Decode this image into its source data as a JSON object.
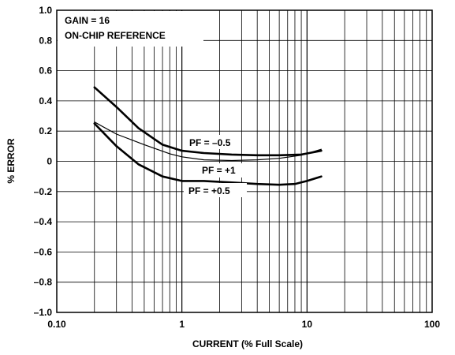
{
  "chart_data": {
    "type": "line",
    "xlabel": "CURRENT (% Full Scale)",
    "ylabel": "% ERROR",
    "x_scale": "log",
    "xlim": [
      0.1,
      100
    ],
    "ylim": [
      -1.0,
      1.0
    ],
    "grid": true,
    "x_ticks": [
      0.1,
      1,
      10,
      100
    ],
    "x_tick_labels": [
      "0.10",
      "1",
      "10",
      "100"
    ],
    "y_ticks": [
      1.0,
      0.8,
      0.6,
      0.4,
      0.2,
      0,
      -0.2,
      -0.4,
      -0.6,
      -0.8,
      -1.0
    ],
    "y_tick_labels": [
      "1.0",
      "0.8",
      "0.6",
      "0.4",
      "0.2",
      "0",
      "–0.2",
      "–0.4",
      "–0.6",
      "–0.8",
      "–1.0"
    ],
    "annotations": [
      "GAIN = 16",
      "ON-CHIP REFERENCE"
    ],
    "series": [
      {
        "name": "PF = –0.5",
        "x": [
          0.2,
          0.3,
          0.45,
          0.7,
          1.0,
          1.5,
          2.5,
          4,
          6,
          9,
          13
        ],
        "y": [
          0.49,
          0.36,
          0.22,
          0.11,
          0.07,
          0.055,
          0.045,
          0.04,
          0.04,
          0.045,
          0.07
        ]
      },
      {
        "name": "PF = +1",
        "x": [
          0.2,
          0.3,
          0.5,
          0.8,
          1.0,
          1.5,
          2.5,
          4,
          6,
          9,
          13
        ],
        "y": [
          0.26,
          0.18,
          0.11,
          0.05,
          0.03,
          0.01,
          0.005,
          0.01,
          0.02,
          0.04,
          0.08
        ]
      },
      {
        "name": "PF = +0.5",
        "x": [
          0.2,
          0.3,
          0.45,
          0.7,
          1.0,
          1.5,
          2.5,
          4,
          6,
          8,
          10,
          13
        ],
        "y": [
          0.25,
          0.1,
          -0.02,
          -0.1,
          -0.13,
          -0.13,
          -0.14,
          -0.15,
          -0.155,
          -0.15,
          -0.13,
          -0.1
        ]
      }
    ]
  }
}
